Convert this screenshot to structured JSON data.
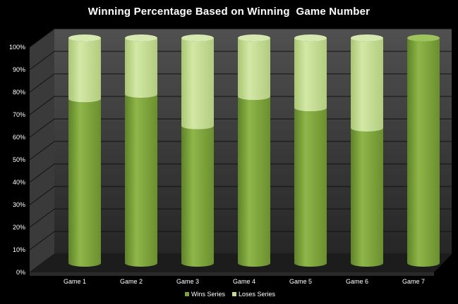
{
  "chart_data": {
    "type": "bar",
    "stacked": true,
    "title": "Winning Percentage Based on Winning  Game Number",
    "categories": [
      "Game 1",
      "Game 2",
      "Game 3",
      "Game 4",
      "Game 5",
      "Game 6",
      "Game 7"
    ],
    "series": [
      {
        "name": "Wins Series",
        "values": [
          73,
          75,
          61,
          74,
          69,
          60,
          100
        ],
        "color": "#7ea33c"
      },
      {
        "name": "Loses Series",
        "values": [
          27,
          25,
          39,
          26,
          31,
          40,
          0
        ],
        "color": "#c3dc8e"
      }
    ],
    "yticks": [
      "0%",
      "10%",
      "20%",
      "30%",
      "40%",
      "50%",
      "60%",
      "70%",
      "80%",
      "90%",
      "100%"
    ],
    "ylim": [
      0,
      100
    ],
    "grid": true,
    "legend_position": "bottom"
  }
}
